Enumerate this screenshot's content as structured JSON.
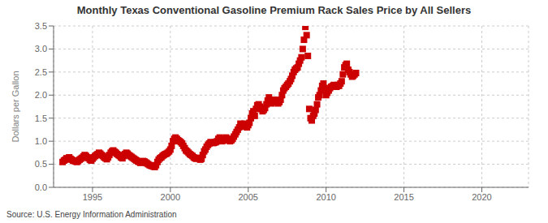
{
  "chart_data": {
    "type": "scatter",
    "title": "Monthly Texas Conventional Gasoline Premium Rack Sales Price by All Sellers",
    "y_label": "Dollars per Gallon",
    "annotations": [
      "Source: U.S. Energy Information Administration"
    ],
    "color": "#cc0000",
    "marker": "square",
    "grid": true,
    "xlim": [
      1992.5,
      2023.0
    ],
    "ylim": [
      0.0,
      3.5
    ],
    "xticks": [
      1995,
      2000,
      2005,
      2010,
      2015,
      2020
    ],
    "yticks": [
      {
        "value": 0.0,
        "label": "0.0"
      },
      0.5,
      {
        "value": 1.0,
        "label": "1.0"
      },
      1.5,
      {
        "value": 2.0,
        "label": "2.0"
      },
      2.5,
      {
        "value": 3.0,
        "label": "3.0"
      },
      3.5
    ],
    "x": [
      1993.08,
      1993.17,
      1993.25,
      1993.33,
      1993.42,
      1993.5,
      1993.58,
      1993.67,
      1993.75,
      1993.83,
      1993.92,
      1994.0,
      1994.08,
      1994.17,
      1994.25,
      1994.33,
      1994.42,
      1994.5,
      1994.58,
      1994.67,
      1994.75,
      1994.83,
      1994.92,
      1995.0,
      1995.08,
      1995.17,
      1995.25,
      1995.33,
      1995.42,
      1995.5,
      1995.58,
      1995.67,
      1995.75,
      1995.83,
      1995.92,
      1996.0,
      1996.08,
      1996.17,
      1996.25,
      1996.33,
      1996.42,
      1996.5,
      1996.58,
      1996.67,
      1996.75,
      1996.83,
      1996.92,
      1997.0,
      1997.08,
      1997.17,
      1997.25,
      1997.33,
      1997.42,
      1997.5,
      1997.58,
      1997.67,
      1997.75,
      1997.83,
      1997.92,
      1998.0,
      1998.08,
      1998.17,
      1998.25,
      1998.33,
      1998.42,
      1998.5,
      1998.58,
      1998.67,
      1998.75,
      1998.83,
      1998.92,
      1999.0,
      1999.08,
      1999.17,
      1999.25,
      1999.33,
      1999.42,
      1999.5,
      1999.58,
      1999.67,
      1999.75,
      1999.83,
      1999.92,
      2000.0,
      2000.08,
      2000.17,
      2000.25,
      2000.33,
      2000.42,
      2000.5,
      2000.58,
      2000.67,
      2000.75,
      2000.83,
      2000.92,
      2001.0,
      2001.08,
      2001.17,
      2001.25,
      2001.33,
      2001.42,
      2001.5,
      2001.58,
      2001.67,
      2001.75,
      2001.83,
      2001.92,
      2002.0,
      2002.08,
      2002.17,
      2002.25,
      2002.33,
      2002.42,
      2002.5,
      2002.58,
      2002.67,
      2002.75,
      2002.83,
      2002.92,
      2003.0,
      2003.08,
      2003.17,
      2003.25,
      2003.33,
      2003.42,
      2003.5,
      2003.58,
      2003.67,
      2003.75,
      2003.83,
      2003.92,
      2004.0,
      2004.08,
      2004.17,
      2004.25,
      2004.33,
      2004.42,
      2004.5,
      2004.58,
      2004.67,
      2004.75,
      2004.83,
      2004.92,
      2005.0,
      2005.08,
      2005.17,
      2005.25,
      2005.33,
      2005.42,
      2005.5,
      2005.58,
      2005.67,
      2005.75,
      2005.83,
      2005.92,
      2006.0,
      2006.08,
      2006.17,
      2006.25,
      2006.33,
      2006.42,
      2006.5,
      2006.58,
      2006.67,
      2006.75,
      2006.83,
      2006.92,
      2007.0,
      2007.08,
      2007.17,
      2007.25,
      2007.33,
      2007.42,
      2007.5,
      2007.58,
      2007.67,
      2007.75,
      2007.83,
      2007.92,
      2008.0,
      2008.08,
      2008.17,
      2008.25,
      2008.33,
      2008.42,
      2008.5,
      2008.58,
      2008.67,
      2008.75,
      2008.83,
      2008.92,
      2009.0,
      2009.08,
      2009.17,
      2009.25,
      2009.33,
      2009.42,
      2009.5,
      2009.58,
      2009.67,
      2009.75,
      2009.83,
      2009.92,
      2010.0,
      2010.08,
      2010.17,
      2010.25,
      2010.33,
      2010.42,
      2010.5,
      2010.58,
      2010.67,
      2010.75,
      2010.83,
      2010.92,
      2011.0,
      2011.08,
      2011.17,
      2011.25,
      2011.33,
      2011.42,
      2011.5,
      2011.58,
      2011.67,
      2011.75,
      2011.83,
      2011.92
    ],
    "values": [
      0.55,
      0.58,
      0.6,
      0.63,
      0.62,
      0.65,
      0.62,
      0.6,
      0.58,
      0.57,
      0.56,
      0.55,
      0.57,
      0.6,
      0.62,
      0.64,
      0.67,
      0.7,
      0.68,
      0.65,
      0.63,
      0.6,
      0.58,
      0.62,
      0.65,
      0.68,
      0.7,
      0.72,
      0.75,
      0.73,
      0.7,
      0.68,
      0.65,
      0.63,
      0.61,
      0.65,
      0.7,
      0.75,
      0.78,
      0.8,
      0.77,
      0.75,
      0.72,
      0.7,
      0.68,
      0.65,
      0.63,
      0.68,
      0.72,
      0.75,
      0.73,
      0.7,
      0.68,
      0.66,
      0.64,
      0.62,
      0.6,
      0.58,
      0.56,
      0.55,
      0.53,
      0.55,
      0.57,
      0.56,
      0.54,
      0.52,
      0.5,
      0.48,
      0.47,
      0.46,
      0.45,
      0.44,
      0.48,
      0.55,
      0.6,
      0.63,
      0.65,
      0.68,
      0.7,
      0.72,
      0.73,
      0.75,
      0.78,
      0.82,
      0.9,
      1.0,
      1.05,
      1.08,
      1.05,
      1.02,
      1.0,
      0.98,
      0.95,
      0.9,
      0.85,
      0.8,
      0.78,
      0.75,
      0.72,
      0.7,
      0.68,
      0.65,
      0.63,
      0.62,
      0.64,
      0.63,
      0.6,
      0.62,
      0.7,
      0.78,
      0.82,
      0.88,
      0.92,
      0.95,
      0.98,
      0.97,
      0.96,
      0.97,
      0.98,
      1.0,
      1.05,
      1.08,
      1.05,
      1.0,
      1.02,
      1.05,
      1.08,
      1.05,
      1.02,
      1.0,
      1.02,
      1.05,
      1.1,
      1.15,
      1.2,
      1.25,
      1.3,
      1.38,
      1.35,
      1.32,
      1.38,
      1.35,
      1.3,
      1.35,
      1.4,
      1.5,
      1.6,
      1.65,
      1.55,
      1.7,
      1.78,
      1.8,
      1.75,
      1.7,
      1.65,
      1.68,
      1.72,
      1.8,
      1.88,
      1.95,
      1.85,
      1.82,
      1.85,
      1.9,
      1.88,
      1.85,
      1.82,
      1.85,
      1.9,
      2.0,
      2.1,
      2.15,
      2.18,
      2.22,
      2.25,
      2.3,
      2.35,
      2.42,
      2.5,
      2.55,
      2.58,
      2.6,
      2.68,
      2.75,
      2.82,
      3.0,
      3.2,
      3.48,
      3.3,
      2.85,
      1.7,
      1.5,
      1.45,
      1.55,
      1.6,
      1.68,
      1.8,
      1.95,
      2.0,
      2.1,
      2.2,
      2.25,
      2.15,
      2.0,
      2.05,
      2.1,
      2.15,
      2.18,
      2.2,
      2.22,
      2.2,
      2.18,
      2.22,
      2.2,
      2.25,
      2.3,
      2.45,
      2.6,
      2.65,
      2.68,
      2.55,
      2.5,
      2.45,
      2.4,
      2.42,
      2.45,
      2.48
    ]
  }
}
